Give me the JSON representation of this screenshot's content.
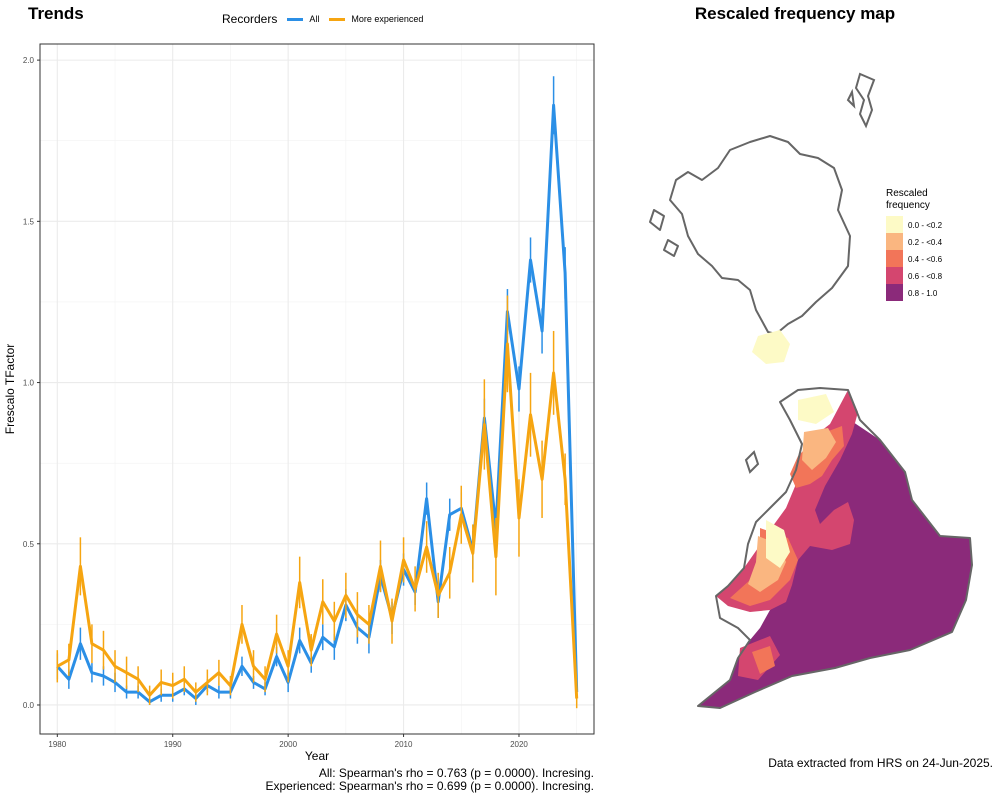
{
  "trends_title": "Trends",
  "map_title": "Rescaled frequency map",
  "recorders_legend": {
    "title": "Recorders",
    "items": [
      {
        "label": "All",
        "color": "#2b8fe6"
      },
      {
        "label": "More experienced",
        "color": "#f6a511"
      }
    ]
  },
  "stats": {
    "line1": "All: Spearman's rho = 0.763 (p = 0.0000). Incresing.",
    "line2": "Experienced: Spearman's rho = 0.699 (p = 0.0000). Incresing."
  },
  "footnote": "Data extracted from HRS on 24-Jun-2025.",
  "chart_data": [
    {
      "type": "line",
      "title": "Trends",
      "xlabel": "Year",
      "ylabel": "Frescalo TFactor",
      "xlim": [
        1978.5,
        2026.5
      ],
      "ylim": [
        -0.09,
        2.05
      ],
      "xticks": [
        1980,
        1990,
        2000,
        2010,
        2020
      ],
      "yticks": [
        0.0,
        0.5,
        1.0,
        1.5,
        2.0
      ],
      "ytick_labels": [
        "0.0",
        "0.5",
        "1.0",
        "1.5",
        "2.0"
      ],
      "grid": true,
      "legend_position": "top",
      "x": [
        1980,
        1981,
        1982,
        1983,
        1984,
        1985,
        1986,
        1987,
        1988,
        1989,
        1990,
        1991,
        1992,
        1993,
        1994,
        1995,
        1996,
        1997,
        1998,
        1999,
        2000,
        2001,
        2002,
        2003,
        2004,
        2005,
        2006,
        2007,
        2008,
        2009,
        2010,
        2011,
        2012,
        2013,
        2014,
        2015,
        2016,
        2017,
        2018,
        2019,
        2020,
        2021,
        2022,
        2023,
        2024,
        2025
      ],
      "series": [
        {
          "name": "All",
          "color": "#2b8fe6",
          "values": [
            0.12,
            0.08,
            0.19,
            0.1,
            0.09,
            0.07,
            0.04,
            0.04,
            0.01,
            0.03,
            0.03,
            0.05,
            0.02,
            0.06,
            0.04,
            0.04,
            0.12,
            0.07,
            0.05,
            0.15,
            0.07,
            0.2,
            0.13,
            0.21,
            0.18,
            0.31,
            0.24,
            0.21,
            0.4,
            0.27,
            0.42,
            0.35,
            0.64,
            0.32,
            0.59,
            0.61,
            0.48,
            0.89,
            0.55,
            1.22,
            0.98,
            1.38,
            1.16,
            1.86,
            1.34,
            0.04
          ],
          "errors": [
            0.04,
            0.03,
            0.05,
            0.03,
            0.03,
            0.03,
            0.02,
            0.02,
            0.01,
            0.02,
            0.02,
            0.02,
            0.02,
            0.02,
            0.02,
            0.02,
            0.03,
            0.02,
            0.02,
            0.03,
            0.03,
            0.04,
            0.03,
            0.04,
            0.04,
            0.05,
            0.05,
            0.05,
            0.05,
            0.05,
            0.05,
            0.04,
            0.05,
            0.05,
            0.05,
            0.05,
            0.06,
            0.06,
            0.06,
            0.07,
            0.07,
            0.07,
            0.07,
            0.09,
            0.08,
            0.02
          ]
        },
        {
          "name": "More experienced",
          "color": "#f6a511",
          "values": [
            0.12,
            0.14,
            0.43,
            0.19,
            0.17,
            0.12,
            0.1,
            0.08,
            0.03,
            0.07,
            0.06,
            0.08,
            0.04,
            0.07,
            0.1,
            0.06,
            0.25,
            0.12,
            0.08,
            0.22,
            0.12,
            0.38,
            0.17,
            0.32,
            0.26,
            0.34,
            0.28,
            0.25,
            0.43,
            0.26,
            0.45,
            0.36,
            0.49,
            0.34,
            0.41,
            0.59,
            0.47,
            0.87,
            0.46,
            1.12,
            0.58,
            0.9,
            0.7,
            1.03,
            0.7,
            0.02
          ],
          "errors": [
            0.05,
            0.05,
            0.09,
            0.06,
            0.06,
            0.05,
            0.05,
            0.04,
            0.03,
            0.04,
            0.04,
            0.04,
            0.03,
            0.04,
            0.04,
            0.03,
            0.06,
            0.05,
            0.04,
            0.06,
            0.05,
            0.08,
            0.05,
            0.07,
            0.06,
            0.07,
            0.07,
            0.06,
            0.08,
            0.07,
            0.07,
            0.07,
            0.08,
            0.07,
            0.08,
            0.09,
            0.09,
            0.14,
            0.12,
            0.15,
            0.12,
            0.13,
            0.12,
            0.13,
            0.08,
            0.03
          ]
        }
      ]
    },
    {
      "type": "heatmap",
      "title": "Rescaled frequency map",
      "legend_title": "Rescaled frequency",
      "legend_position": "right",
      "classes": [
        {
          "label": "0.0 - <0.2",
          "color": "#fdfac6"
        },
        {
          "label": "0.2 - <0.4",
          "color": "#fab680"
        },
        {
          "label": "0.4 - <0.6",
          "color": "#f27559"
        },
        {
          "label": "0.6 - <0.8",
          "color": "#d4466f"
        },
        {
          "label": "0.8 - 1.0",
          "color": "#8b2a7a"
        }
      ],
      "outline_color": "#666666"
    }
  ]
}
